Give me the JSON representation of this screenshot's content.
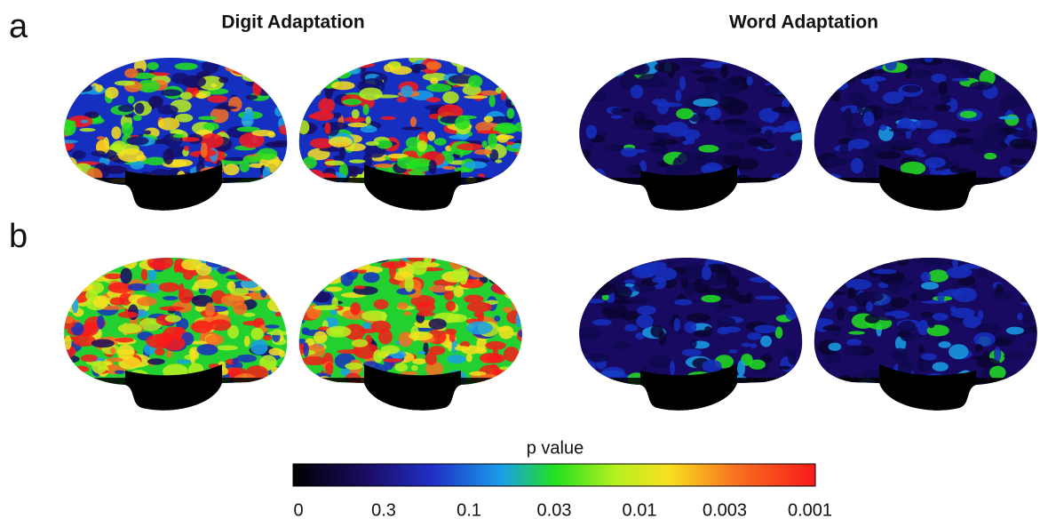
{
  "panels": [
    {
      "label": "a"
    },
    {
      "label": "b"
    }
  ],
  "columns": [
    {
      "title": "Digit Adaptation"
    },
    {
      "title": "Word Adaptation"
    }
  ],
  "colorbar": {
    "label": "p value",
    "ticks": [
      "0",
      "0.3",
      "0.1",
      "0.03",
      "0.01",
      "0.003",
      "0.001"
    ]
  }
}
